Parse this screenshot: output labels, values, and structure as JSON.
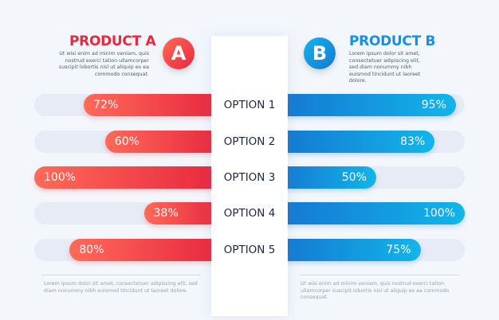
{
  "chart_data": {
    "type": "bar",
    "categories": [
      "OPTION 1",
      "OPTION 2",
      "OPTION 3",
      "OPTION 4",
      "OPTION 5"
    ],
    "series": [
      {
        "name": "PRODUCT A",
        "values": [
          72,
          60,
          100,
          38,
          80
        ],
        "color": "#e8283f"
      },
      {
        "name": "PRODUCT B",
        "values": [
          95,
          83,
          50,
          100,
          75
        ],
        "color": "#1578d2"
      }
    ],
    "ylim": [
      0,
      100
    ]
  },
  "product_a": {
    "title": "PRODUCT A",
    "badge": "A",
    "desc": "Ut wisi enim ad minim veniam, quis nostrud exerci tation ullamcorper suscipit lobortis nisl ut aliquip ex ea commodo consequat.",
    "footer": "Lorem ipsum dolor sit amet, consectetuer adipiscing elit, sed diam nonummy nibh euismod tincidunt ut laoreet dolore."
  },
  "product_b": {
    "title": "PRODUCT B",
    "badge": "B",
    "desc": "Lorem ipsum dolor sit amet, consectetuer adipiscing elit, sed diam nonummy nibh euismod tincidunt ut laoreet dolore.",
    "footer": "Ut wisi enim ad minim veniam, quis nostrud exerci tation ullamcorper suscipit lobortis nisl ut aliquip ex ea commodo consequat."
  },
  "labels": {
    "percent_suffix": "%"
  }
}
